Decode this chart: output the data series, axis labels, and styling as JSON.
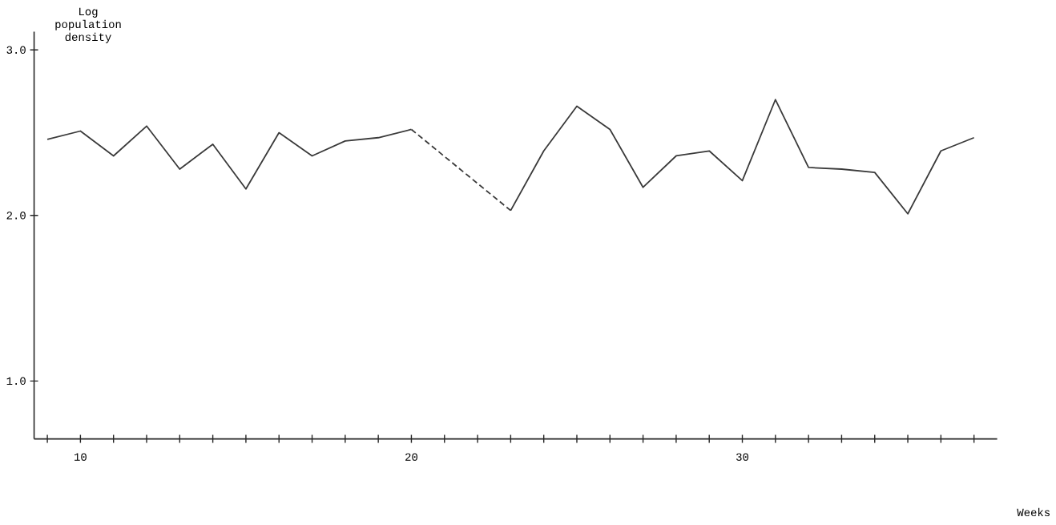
{
  "chart_data": {
    "type": "line",
    "xlabel": "Weeks",
    "ylabel": "Log population density",
    "xlim": [
      8.6,
      37.7
    ],
    "ylim": [
      0.65,
      3.11
    ],
    "xticks": [
      {
        "value": 9,
        "label": null
      },
      {
        "value": 10,
        "label": "10"
      },
      {
        "value": 11,
        "label": null
      },
      {
        "value": 12,
        "label": null
      },
      {
        "value": 13,
        "label": null
      },
      {
        "value": 14,
        "label": null
      },
      {
        "value": 15,
        "label": null
      },
      {
        "value": 16,
        "label": null
      },
      {
        "value": 17,
        "label": null
      },
      {
        "value": 18,
        "label": null
      },
      {
        "value": 19,
        "label": null
      },
      {
        "value": 20,
        "label": "20"
      },
      {
        "value": 21,
        "label": null
      },
      {
        "value": 22,
        "label": null
      },
      {
        "value": 23,
        "label": null
      },
      {
        "value": 24,
        "label": null
      },
      {
        "value": 25,
        "label": null
      },
      {
        "value": 26,
        "label": null
      },
      {
        "value": 27,
        "label": null
      },
      {
        "value": 28,
        "label": null
      },
      {
        "value": 29,
        "label": null
      },
      {
        "value": 30,
        "label": "30"
      },
      {
        "value": 31,
        "label": null
      },
      {
        "value": 32,
        "label": null
      },
      {
        "value": 33,
        "label": null
      },
      {
        "value": 34,
        "label": null
      },
      {
        "value": 35,
        "label": null
      },
      {
        "value": 36,
        "label": null
      },
      {
        "value": 37,
        "label": null
      }
    ],
    "yticks": [
      {
        "value": 1,
        "label": "1.0"
      },
      {
        "value": 2,
        "label": "2.0"
      },
      {
        "value": 3,
        "label": "3.0"
      }
    ],
    "series": [
      {
        "color": "#3a3a3a",
        "line_style": "solid",
        "x": [
          9,
          10,
          11,
          12,
          13,
          14,
          15,
          16,
          17,
          18,
          19,
          20
        ],
        "values": [
          2.46,
          2.51,
          2.36,
          2.54,
          2.28,
          2.43,
          2.16,
          2.5,
          2.36,
          2.45,
          2.47,
          2.52
        ]
      },
      {
        "color": "#3a3a3a",
        "line_style": "dashed",
        "x": [
          20,
          23
        ],
        "values": [
          2.52,
          2.03
        ]
      },
      {
        "color": "#3a3a3a",
        "line_style": "solid",
        "x": [
          23,
          24,
          25,
          26,
          27,
          28,
          29,
          30,
          31,
          32,
          33,
          34,
          35,
          36,
          37
        ],
        "values": [
          2.03,
          2.39,
          2.66,
          2.52,
          2.17,
          2.36,
          2.39,
          2.21,
          2.7,
          2.29,
          2.28,
          2.26,
          2.01,
          2.39,
          2.47
        ]
      }
    ]
  }
}
